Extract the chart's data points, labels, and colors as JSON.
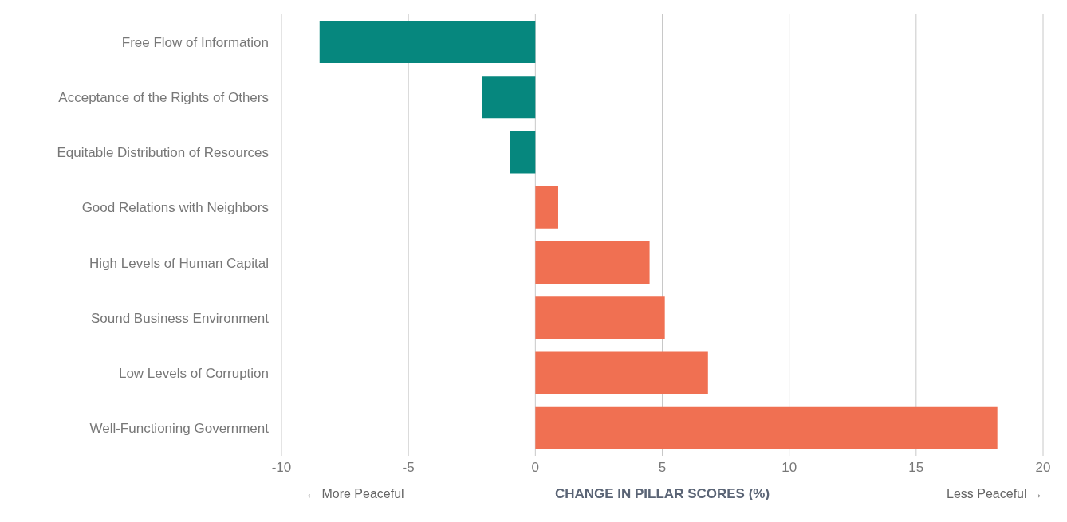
{
  "chart_data": {
    "type": "bar",
    "orientation": "horizontal",
    "xlabel": "CHANGE IN PILLAR SCORES (%)",
    "categories": [
      "Free Flow of Information",
      "Acceptance of the Rights of Others",
      "Equitable Distribution of Resources",
      "Good Relations with Neighbors",
      "High Levels of Human Capital",
      "Sound Business Environment",
      "Low Levels of Corruption",
      "Well-Functioning Government"
    ],
    "values": [
      -8.5,
      -2.1,
      -1.0,
      0.9,
      4.5,
      5.1,
      6.8,
      18.2
    ],
    "colors": [
      "#06877e",
      "#06877e",
      "#06877e",
      "#f07052",
      "#f07052",
      "#f07052",
      "#f07052",
      "#f07052"
    ],
    "xlim": [
      -10,
      20
    ],
    "xticks": [
      -10,
      -5,
      0,
      5,
      10,
      15,
      20
    ],
    "grid": "x",
    "annotations": [
      "← More Peaceful",
      "Less Peaceful →"
    ]
  }
}
